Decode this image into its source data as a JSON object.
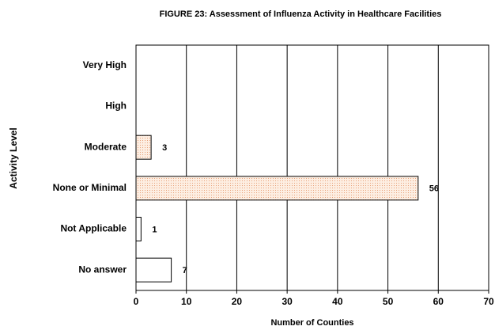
{
  "chart_data": {
    "type": "hbar",
    "title": "FIGURE  23: Assessment of Influenza Activity  in Healthcare Facilities",
    "x_label": "Number of Counties",
    "y_label": "Activity Level",
    "categories": [
      "Very High",
      "High",
      "Moderate",
      "None or Minimal",
      "Not Applicable",
      "No answer"
    ],
    "values": [
      null,
      null,
      3,
      56,
      1,
      7
    ],
    "colors": [
      "#f9dcc4",
      "#f9dcc4",
      "#f9dcc4",
      "#f9dcc4",
      "#ffffff",
      "#ffffff"
    ],
    "xlim": [
      0,
      70
    ],
    "xticks": [
      0,
      10,
      20,
      30,
      40,
      50,
      60,
      70
    ],
    "grid": true
  }
}
